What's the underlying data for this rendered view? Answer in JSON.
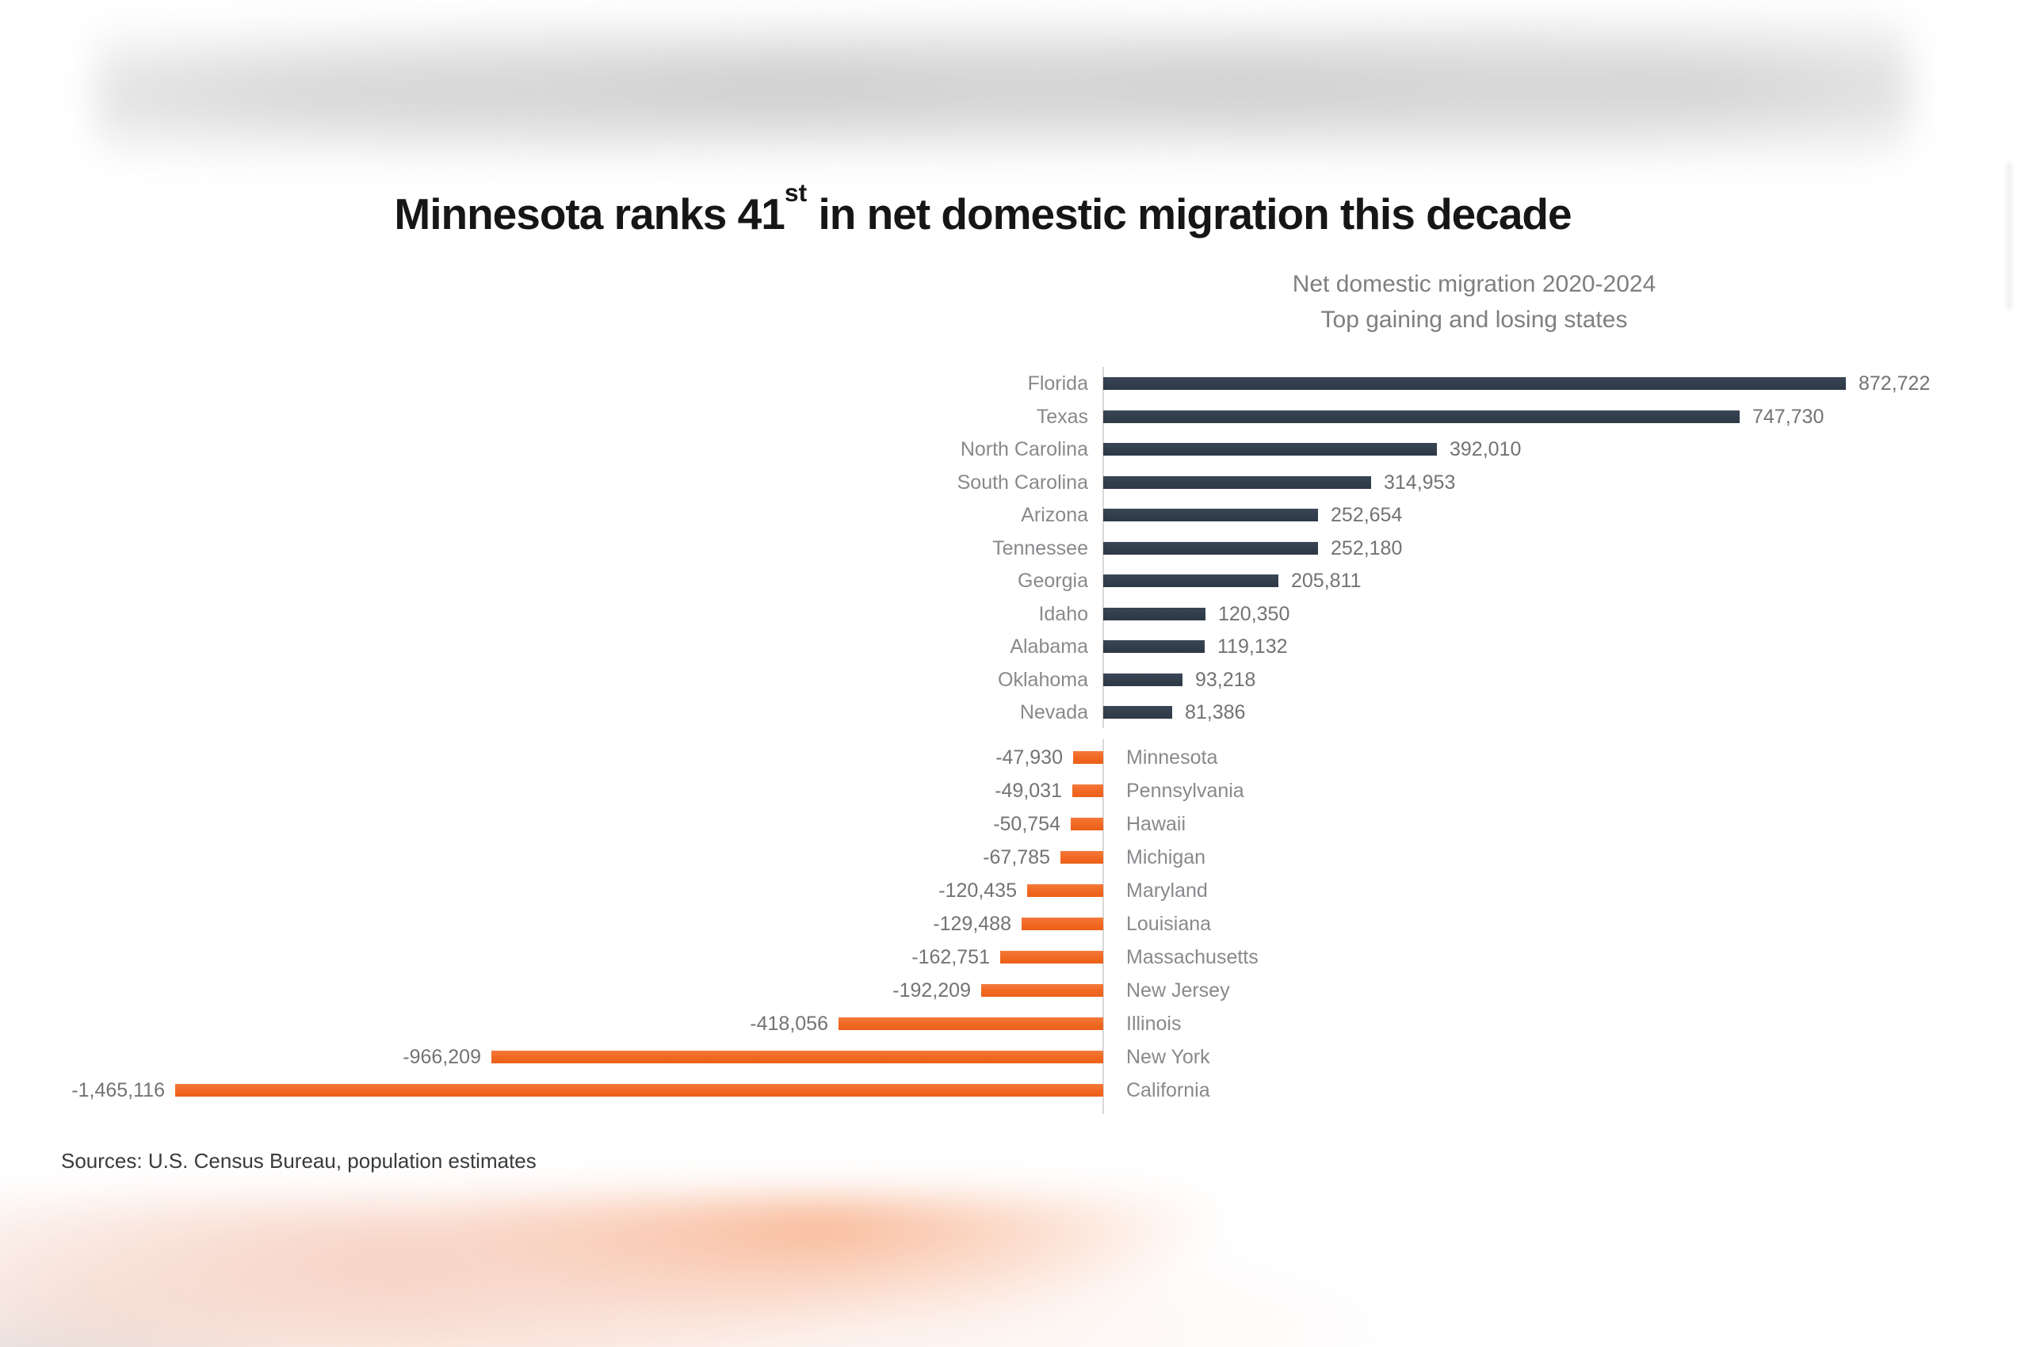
{
  "header": {
    "title_pre": "Minnesota ranks 41",
    "title_sup": "st",
    "title_post": " in net domestic migration this decade"
  },
  "chart_data": {
    "type": "bar",
    "variant": "horizontal-diverging",
    "title": "Minnesota ranks 41st in net domestic migration this decade",
    "subtitle": [
      "Net domestic migration 2020-2024",
      "Top gaining and losing states"
    ],
    "legend": "none",
    "grid": "off",
    "unit": "net domestic migrants, 2020-2024",
    "positive_color": "#333F4D",
    "negative_color": "#F16A24",
    "axis_color": "#D8D8D8",
    "gaining_states": [
      {
        "state": "Florida",
        "value": 872722,
        "label": "872,722"
      },
      {
        "state": "Texas",
        "value": 747730,
        "label": "747,730"
      },
      {
        "state": "North Carolina",
        "value": 392010,
        "label": "392,010"
      },
      {
        "state": "South Carolina",
        "value": 314953,
        "label": "314,953"
      },
      {
        "state": "Arizona",
        "value": 252654,
        "label": "252,654"
      },
      {
        "state": "Tennessee",
        "value": 252180,
        "label": "252,180"
      },
      {
        "state": "Georgia",
        "value": 205811,
        "label": "205,811"
      },
      {
        "state": "Idaho",
        "value": 120350,
        "label": "120,350"
      },
      {
        "state": "Alabama",
        "value": 119132,
        "label": "119,132"
      },
      {
        "state": "Oklahoma",
        "value": 93218,
        "label": "93,218"
      },
      {
        "state": "Nevada",
        "value": 81386,
        "label": "81,386"
      }
    ],
    "losing_states": [
      {
        "state": "Minnesota",
        "value": -47930,
        "label": "-47,930"
      },
      {
        "state": "Pennsylvania",
        "value": -49031,
        "label": "-49,031"
      },
      {
        "state": "Hawaii",
        "value": -50754,
        "label": "-50,754"
      },
      {
        "state": "Michigan",
        "value": -67785,
        "label": "-67,785"
      },
      {
        "state": "Maryland",
        "value": -120435,
        "label": "-120,435"
      },
      {
        "state": "Louisiana",
        "value": -129488,
        "label": "-129,488"
      },
      {
        "state": "Massachusetts",
        "value": -162751,
        "label": "-162,751"
      },
      {
        "state": "New Jersey",
        "value": -192209,
        "label": "-192,209"
      },
      {
        "state": "Illinois",
        "value": -418056,
        "label": "-418,056"
      },
      {
        "state": "New York",
        "value": -966209,
        "label": "-966,209"
      },
      {
        "state": "California",
        "value": -1465116,
        "label": "-1,465,116"
      }
    ],
    "source": "Sources: U.S. Census Bureau, population estimates"
  }
}
